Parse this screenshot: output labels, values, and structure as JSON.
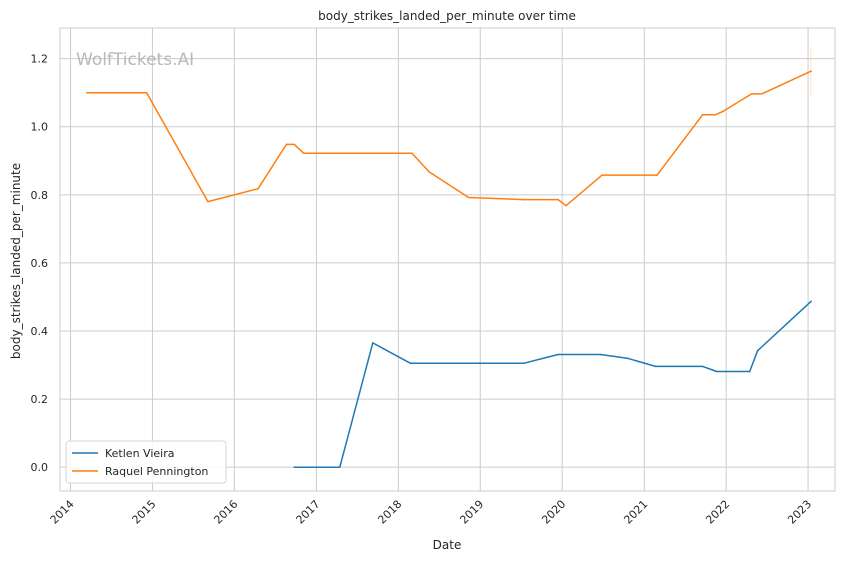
{
  "chart_data": {
    "type": "line",
    "title": "body_strikes_landed_per_minute over time",
    "xlabel": "Date",
    "ylabel": "body_strikes_landed_per_minute",
    "watermark": "WolfTickets.AI",
    "x_ticks": [
      "2014",
      "2015",
      "2016",
      "2017",
      "2018",
      "2019",
      "2020",
      "2021",
      "2022",
      "2023"
    ],
    "y_ticks": [
      "0.0",
      "0.2",
      "0.4",
      "0.6",
      "0.8",
      "1.0",
      "1.2"
    ],
    "xlim": [
      "2013-11-15",
      "2023-05-01"
    ],
    "ylim": [
      -0.07,
      1.29
    ],
    "grid": true,
    "legend_position": "lower-left",
    "series": [
      {
        "name": "Ketlen Vieira",
        "color": "#1f77b4",
        "points": [
          [
            "2016-09-24",
            0.0
          ],
          [
            "2017-04-15",
            0.0
          ],
          [
            "2017-09-09",
            0.365
          ],
          [
            "2018-02-24",
            0.305
          ],
          [
            "2019-07-13",
            0.305
          ],
          [
            "2019-12-14",
            0.331
          ],
          [
            "2020-06-20",
            0.331
          ],
          [
            "2020-10-17",
            0.32
          ],
          [
            "2021-02-20",
            0.296
          ],
          [
            "2021-09-18",
            0.296
          ],
          [
            "2021-11-20",
            0.281
          ],
          [
            "2022-04-16",
            0.281
          ],
          [
            "2022-05-21",
            0.342
          ],
          [
            "2023-01-14",
            0.487
          ]
        ]
      },
      {
        "name": "Raquel Pennington",
        "color": "#ff7f0e",
        "points": [
          [
            "2014-03-15",
            1.1
          ],
          [
            "2014-12-06",
            1.1
          ],
          [
            "2015-09-05",
            0.78
          ],
          [
            "2016-04-16",
            0.818
          ],
          [
            "2016-08-20",
            0.948
          ],
          [
            "2016-09-24",
            0.948
          ],
          [
            "2016-11-05",
            0.922
          ],
          [
            "2018-03-03",
            0.922
          ],
          [
            "2018-05-19",
            0.867
          ],
          [
            "2018-11-10",
            0.792
          ],
          [
            "2019-07-13",
            0.786
          ],
          [
            "2019-12-14",
            0.786
          ],
          [
            "2020-01-18",
            0.768
          ],
          [
            "2020-06-27",
            0.858
          ],
          [
            "2021-02-27",
            0.858
          ],
          [
            "2021-09-18",
            1.035
          ],
          [
            "2021-11-13",
            1.035
          ],
          [
            "2021-12-18",
            1.045
          ],
          [
            "2022-04-23",
            1.096
          ],
          [
            "2022-06-11",
            1.097
          ],
          [
            "2023-01-14",
            1.163
          ]
        ]
      }
    ]
  }
}
